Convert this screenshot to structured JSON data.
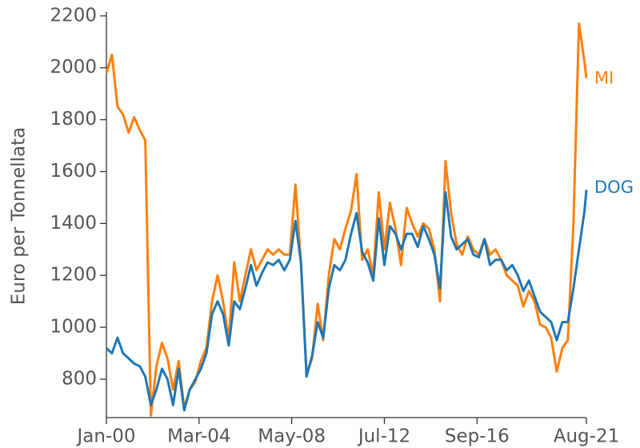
{
  "chart_data": {
    "type": "line",
    "y_label": "Euro per Tonnellata",
    "x": [
      "2000-01",
      "2000-04",
      "2000-07",
      "2000-10",
      "2001-01",
      "2001-04",
      "2001-07",
      "2001-10",
      "2002-01",
      "2002-04",
      "2002-07",
      "2002-10",
      "2003-01",
      "2003-04",
      "2003-07",
      "2003-10",
      "2004-01",
      "2004-04",
      "2004-07",
      "2004-10",
      "2005-01",
      "2005-04",
      "2005-07",
      "2005-10",
      "2006-01",
      "2006-04",
      "2006-07",
      "2006-10",
      "2007-01",
      "2007-04",
      "2007-07",
      "2007-10",
      "2008-01",
      "2008-04",
      "2008-07",
      "2008-10",
      "2009-01",
      "2009-04",
      "2009-07",
      "2009-10",
      "2010-01",
      "2010-04",
      "2010-07",
      "2010-10",
      "2011-01",
      "2011-04",
      "2011-07",
      "2011-10",
      "2012-01",
      "2012-04",
      "2012-07",
      "2012-10",
      "2013-01",
      "2013-04",
      "2013-07",
      "2013-10",
      "2014-01",
      "2014-04",
      "2014-07",
      "2014-10",
      "2015-01",
      "2015-04",
      "2015-07",
      "2015-10",
      "2016-01",
      "2016-04",
      "2016-07",
      "2016-10",
      "2017-01",
      "2017-04",
      "2017-07",
      "2017-10",
      "2018-01",
      "2018-04",
      "2018-07",
      "2018-10",
      "2019-01",
      "2019-04",
      "2019-07",
      "2019-10",
      "2020-01",
      "2020-04",
      "2020-07",
      "2020-10",
      "2021-01",
      "2021-04",
      "2021-07",
      "2021-08"
    ],
    "series": [
      {
        "name": "MI",
        "color": "#ff7f0e",
        "values": [
          1980,
          2050,
          1850,
          1820,
          1750,
          1810,
          1760,
          1720,
          660,
          850,
          940,
          880,
          760,
          870,
          690,
          760,
          790,
          870,
          920,
          1100,
          1200,
          1100,
          950,
          1250,
          1100,
          1200,
          1300,
          1220,
          1260,
          1300,
          1280,
          1300,
          1280,
          1280,
          1550,
          1250,
          820,
          880,
          1090,
          950,
          1200,
          1340,
          1300,
          1380,
          1450,
          1590,
          1260,
          1300,
          1200,
          1520,
          1300,
          1480,
          1380,
          1240,
          1460,
          1400,
          1350,
          1400,
          1380,
          1300,
          1100,
          1640,
          1440,
          1320,
          1280,
          1350,
          1300,
          1280,
          1340,
          1280,
          1300,
          1260,
          1200,
          1180,
          1160,
          1080,
          1140,
          1100,
          1010,
          1000,
          960,
          830,
          920,
          950,
          1400,
          2170,
          2020,
          1960
        ]
      },
      {
        "name": "DOG",
        "color": "#1f77b4",
        "values": [
          920,
          900,
          960,
          900,
          880,
          860,
          850,
          810,
          700,
          760,
          840,
          800,
          700,
          840,
          680,
          760,
          800,
          840,
          900,
          1050,
          1100,
          1050,
          930,
          1100,
          1070,
          1150,
          1240,
          1160,
          1210,
          1250,
          1240,
          1260,
          1220,
          1260,
          1410,
          1250,
          810,
          890,
          1020,
          960,
          1150,
          1240,
          1220,
          1260,
          1360,
          1440,
          1290,
          1250,
          1180,
          1420,
          1240,
          1390,
          1360,
          1300,
          1360,
          1360,
          1310,
          1390,
          1340,
          1280,
          1150,
          1520,
          1350,
          1300,
          1320,
          1340,
          1280,
          1270,
          1340,
          1240,
          1260,
          1260,
          1220,
          1240,
          1200,
          1140,
          1180,
          1120,
          1060,
          1040,
          1020,
          950,
          1020,
          1020,
          1150,
          1300,
          1450,
          1530
        ]
      }
    ],
    "ylim": [
      652,
      2215
    ],
    "yticks": [
      800,
      1000,
      1200,
      1400,
      1600,
      1800,
      2000,
      2200
    ],
    "xticks": [
      {
        "value": "2000-01",
        "label": "Jan-00"
      },
      {
        "value": "2004-03",
        "label": "Mar-04"
      },
      {
        "value": "2008-05",
        "label": "May-08"
      },
      {
        "value": "2012-07",
        "label": "Jul-12"
      },
      {
        "value": "2016-09",
        "label": "Sep-16"
      },
      {
        "value": "2021-08",
        "label": "Aug-21"
      }
    ]
  }
}
